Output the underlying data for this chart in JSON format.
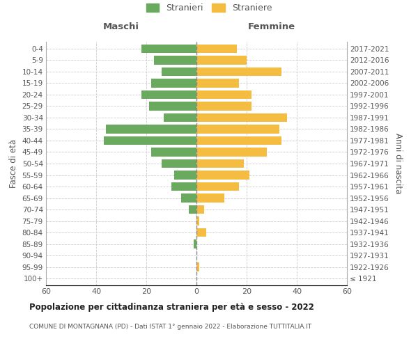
{
  "age_groups": [
    "100+",
    "95-99",
    "90-94",
    "85-89",
    "80-84",
    "75-79",
    "70-74",
    "65-69",
    "60-64",
    "55-59",
    "50-54",
    "45-49",
    "40-44",
    "35-39",
    "30-34",
    "25-29",
    "20-24",
    "15-19",
    "10-14",
    "5-9",
    "0-4"
  ],
  "birth_years": [
    "≤ 1921",
    "1922-1926",
    "1927-1931",
    "1932-1936",
    "1937-1941",
    "1942-1946",
    "1947-1951",
    "1952-1956",
    "1957-1961",
    "1962-1966",
    "1967-1971",
    "1972-1976",
    "1977-1981",
    "1982-1986",
    "1987-1991",
    "1992-1996",
    "1997-2001",
    "2002-2006",
    "2007-2011",
    "2012-2016",
    "2017-2021"
  ],
  "males": [
    0,
    0,
    0,
    1,
    0,
    0,
    3,
    6,
    10,
    9,
    14,
    18,
    37,
    36,
    13,
    19,
    22,
    18,
    14,
    17,
    22
  ],
  "females": [
    0,
    1,
    0,
    0,
    4,
    1,
    3,
    11,
    17,
    21,
    19,
    28,
    34,
    33,
    36,
    22,
    22,
    17,
    34,
    20,
    16
  ],
  "male_color": "#6aaa5e",
  "female_color": "#f5bc42",
  "dashed_line_color": "#888888",
  "grid_color": "#cccccc",
  "background_color": "#ffffff",
  "title": "Popolazione per cittadinanza straniera per età e sesso - 2022",
  "subtitle": "COMUNE DI MONTAGNANA (PD) - Dati ISTAT 1° gennaio 2022 - Elaborazione TUTTITALIA.IT",
  "xlabel_left": "Maschi",
  "xlabel_right": "Femmine",
  "ylabel_left": "Fasce di età",
  "ylabel_right": "Anni di nascita",
  "legend_stranieri": "Stranieri",
  "legend_straniere": "Straniere",
  "xlim": 60,
  "bar_height": 0.75
}
